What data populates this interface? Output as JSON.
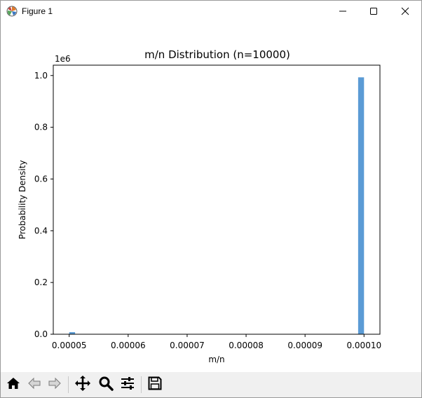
{
  "window": {
    "title": "Figure 1",
    "icons": {
      "app": "matplotlib-logo-icon",
      "minimize": "minimize-icon",
      "maximize": "maximize-icon",
      "close": "close-icon"
    }
  },
  "toolbar": {
    "buttons": [
      {
        "name": "home-icon"
      },
      {
        "name": "back-arrow-icon"
      },
      {
        "name": "forward-arrow-icon"
      },
      {
        "name": "pan-icon"
      },
      {
        "name": "zoom-icon"
      },
      {
        "name": "configure-subplots-icon"
      },
      {
        "name": "save-icon"
      }
    ]
  },
  "chart_data": {
    "type": "bar",
    "title": "m/n Distribution (n=10000)",
    "xlabel": "m/n",
    "ylabel": "Probability Density",
    "y_offset_label": "1e6",
    "xlim": [
      4.73e-05,
      0.0001027
    ],
    "ylim": [
      0,
      1.04
    ],
    "xticks": [
      5e-05,
      6e-05,
      7e-05,
      8e-05,
      9e-05,
      0.0001
    ],
    "xtick_labels": [
      "0.00005",
      "0.00006",
      "0.00007",
      "0.00008",
      "0.00009",
      "0.00010"
    ],
    "yticks": [
      0.0,
      0.2,
      0.4,
      0.6,
      0.8,
      1.0
    ],
    "ytick_labels": [
      "0.0",
      "0.2",
      "0.4",
      "0.6",
      "0.8",
      "1.0"
    ],
    "bar_color": "#5b9bd5",
    "bars": [
      {
        "x0": 5e-05,
        "x1": 5.1e-05,
        "value": 0.008
      },
      {
        "x0": 9.9e-05,
        "x1": 0.0001,
        "value": 0.993
      }
    ],
    "grid": false
  }
}
